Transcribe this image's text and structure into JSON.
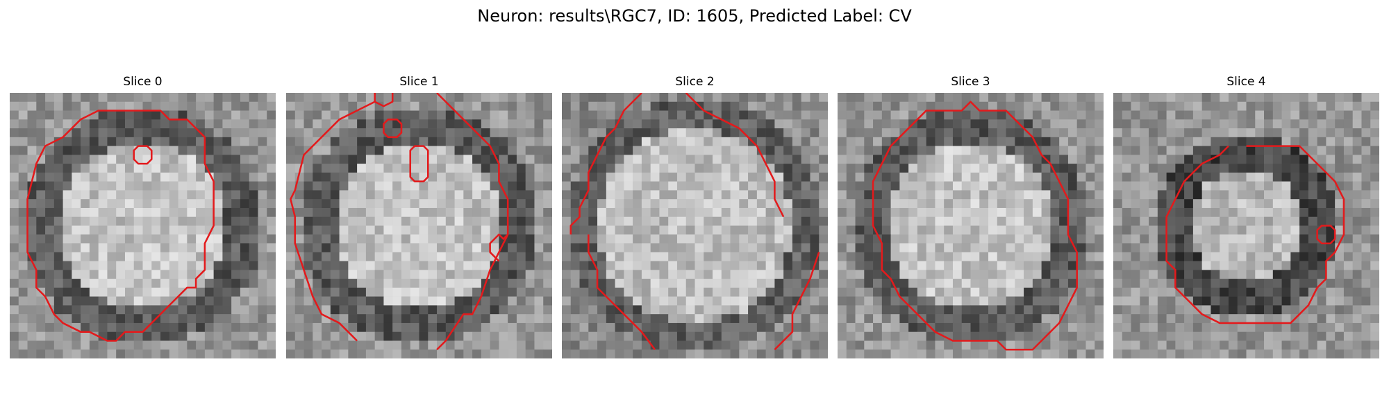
{
  "figure": {
    "title": "Neuron: results\\RGC7, ID: 1605, Predicted Label: CV"
  },
  "colors": {
    "contour": "#e31a1c",
    "background": "#ffffff"
  },
  "slices": [
    {
      "label": "Slice 0",
      "profile": "bright-center",
      "seed": 11,
      "contours": [
        [
          [
            11,
            2
          ],
          [
            17,
            2
          ],
          [
            18,
            3
          ],
          [
            20,
            3
          ],
          [
            22,
            5
          ],
          [
            22,
            8
          ],
          [
            23,
            10
          ],
          [
            23,
            15
          ],
          [
            22,
            17
          ],
          [
            22,
            20
          ],
          [
            21,
            21
          ],
          [
            21,
            22
          ],
          [
            20,
            22
          ],
          [
            18,
            24
          ],
          [
            16,
            26
          ],
          [
            15,
            27
          ],
          [
            13,
            27
          ],
          [
            12,
            28
          ],
          [
            11,
            28
          ],
          [
            9,
            27
          ],
          [
            8,
            27
          ],
          [
            6,
            26
          ],
          [
            5,
            25
          ],
          [
            4,
            23
          ],
          [
            3,
            22
          ],
          [
            3,
            20
          ],
          [
            2,
            18
          ],
          [
            2,
            12
          ],
          [
            3,
            8
          ],
          [
            4,
            6
          ],
          [
            6,
            5
          ],
          [
            8,
            3
          ],
          [
            10,
            2
          ]
        ],
        [
          [
            14.5,
            6
          ],
          [
            15.5,
            6
          ],
          [
            16,
            6.5
          ],
          [
            16,
            7.5
          ],
          [
            15.5,
            8
          ],
          [
            14.5,
            8
          ],
          [
            14,
            7.5
          ],
          [
            14,
            6.5
          ]
        ]
      ]
    },
    {
      "label": "Slice 1",
      "profile": "bright-center",
      "seed": 23,
      "contours": [
        [
          [
            4,
            5
          ],
          [
            6,
            3
          ],
          [
            8,
            2
          ],
          [
            10,
            1
          ]
        ],
        [
          [
            17,
            0
          ],
          [
            19,
            2
          ],
          [
            21,
            4
          ],
          [
            23,
            6
          ],
          [
            24,
            8
          ],
          [
            24,
            10
          ],
          [
            25,
            12
          ],
          [
            25,
            16
          ],
          [
            24,
            18
          ],
          [
            23,
            20
          ],
          [
            22,
            23
          ],
          [
            21,
            25
          ],
          [
            20,
            25
          ],
          [
            18,
            28
          ],
          [
            17,
            29
          ]
        ],
        [
          [
            25,
            16
          ],
          [
            24.5,
            16.5
          ],
          [
            24,
            16
          ],
          [
            23,
            17
          ],
          [
            23,
            18
          ],
          [
            24,
            19
          ]
        ],
        [
          [
            8,
            28
          ],
          [
            6,
            26
          ],
          [
            4,
            25
          ],
          [
            3,
            23
          ],
          [
            2,
            20
          ],
          [
            1,
            17
          ],
          [
            1,
            14
          ],
          [
            0.5,
            12
          ],
          [
            1,
            11
          ],
          [
            1.5,
            9
          ],
          [
            2,
            7
          ],
          [
            4,
            5
          ]
        ],
        [
          [
            10,
            0
          ],
          [
            10,
            1
          ],
          [
            11,
            1.5
          ],
          [
            12,
            1
          ],
          [
            12,
            0
          ]
        ],
        [
          [
            11.5,
            3
          ],
          [
            12.5,
            3
          ],
          [
            13,
            3.5
          ],
          [
            13,
            4.5
          ],
          [
            12.5,
            5
          ],
          [
            11.5,
            5
          ],
          [
            11,
            4.5
          ],
          [
            11,
            3.5
          ]
        ],
        [
          [
            14.5,
            6
          ],
          [
            15.5,
            6
          ],
          [
            16,
            6.5
          ],
          [
            16,
            9.5
          ],
          [
            15.5,
            10
          ],
          [
            14.5,
            10
          ],
          [
            14,
            9.5
          ],
          [
            14,
            6.5
          ]
        ]
      ]
    },
    {
      "label": "Slice 2",
      "profile": "bright-wide",
      "seed": 37,
      "contours": [
        [
          [
            9,
            0
          ],
          [
            7,
            2
          ],
          [
            6,
            4
          ],
          [
            5,
            5
          ],
          [
            4,
            7
          ],
          [
            3,
            9
          ],
          [
            3,
            11
          ],
          [
            2,
            13
          ],
          [
            2,
            14
          ],
          [
            1,
            15
          ],
          [
            1,
            16
          ]
        ],
        [
          [
            14,
            0
          ],
          [
            16,
            2
          ],
          [
            18,
            3
          ],
          [
            20,
            4
          ],
          [
            21,
            5
          ],
          [
            22,
            6
          ],
          [
            23,
            8
          ],
          [
            24,
            10
          ],
          [
            24,
            12
          ],
          [
            25,
            14
          ]
        ],
        [
          [
            10.5,
            29
          ],
          [
            9,
            27
          ],
          [
            7,
            25
          ],
          [
            6,
            24
          ],
          [
            5,
            23
          ],
          [
            4,
            22
          ],
          [
            4,
            20
          ],
          [
            3,
            18
          ],
          [
            3,
            16
          ]
        ],
        [
          [
            24,
            29
          ],
          [
            26,
            27
          ],
          [
            26,
            25
          ],
          [
            27,
            23
          ],
          [
            28,
            21
          ],
          [
            29,
            18
          ]
        ]
      ]
    },
    {
      "label": "Slice 3",
      "profile": "bright-center",
      "seed": 53,
      "contours": [
        [
          [
            10,
            2
          ],
          [
            14,
            2
          ],
          [
            15,
            1
          ],
          [
            16,
            2
          ],
          [
            19,
            2
          ],
          [
            20,
            3
          ],
          [
            21,
            4
          ],
          [
            22,
            5
          ],
          [
            23,
            7
          ],
          [
            24,
            8
          ],
          [
            25,
            10
          ],
          [
            26,
            12
          ],
          [
            26,
            16
          ],
          [
            27,
            18
          ],
          [
            27,
            22
          ],
          [
            26,
            24
          ],
          [
            25,
            26
          ],
          [
            24,
            27
          ],
          [
            23,
            28
          ],
          [
            22,
            29
          ],
          [
            19,
            29
          ],
          [
            18,
            28
          ],
          [
            16,
            28
          ],
          [
            15,
            28
          ],
          [
            13,
            28
          ],
          [
            11,
            27
          ],
          [
            10,
            26
          ],
          [
            8,
            24
          ],
          [
            7,
            23
          ],
          [
            6,
            21
          ],
          [
            5,
            20
          ],
          [
            5,
            17
          ],
          [
            4,
            15
          ],
          [
            4,
            10
          ],
          [
            5,
            8
          ],
          [
            6,
            6
          ],
          [
            7,
            5
          ],
          [
            8,
            4
          ],
          [
            9,
            3
          ]
        ]
      ]
    },
    {
      "label": "Slice 4",
      "profile": "ring",
      "seed": 71,
      "contours": [
        [
          [
            15,
            6
          ],
          [
            21,
            6
          ],
          [
            23,
            8
          ],
          [
            24,
            9
          ],
          [
            25,
            10
          ],
          [
            26,
            12
          ],
          [
            26,
            16
          ],
          [
            25,
            18
          ],
          [
            24,
            19
          ],
          [
            24,
            21
          ],
          [
            23,
            22
          ],
          [
            22,
            24
          ],
          [
            21,
            25
          ],
          [
            20,
            26
          ],
          [
            12,
            26
          ],
          [
            10,
            25
          ],
          [
            9,
            24
          ],
          [
            8,
            23
          ],
          [
            7,
            22
          ],
          [
            7,
            20
          ],
          [
            6,
            19
          ],
          [
            6,
            14
          ],
          [
            7,
            12
          ],
          [
            8,
            10
          ],
          [
            9,
            9
          ],
          [
            10,
            8
          ],
          [
            12,
            7
          ],
          [
            13,
            6
          ]
        ],
        [
          [
            23.5,
            15
          ],
          [
            24.5,
            15
          ],
          [
            25,
            15.5
          ],
          [
            25,
            16.5
          ],
          [
            24.5,
            17
          ],
          [
            23.5,
            17
          ],
          [
            23,
            16.5
          ],
          [
            23,
            15.5
          ]
        ]
      ]
    }
  ]
}
